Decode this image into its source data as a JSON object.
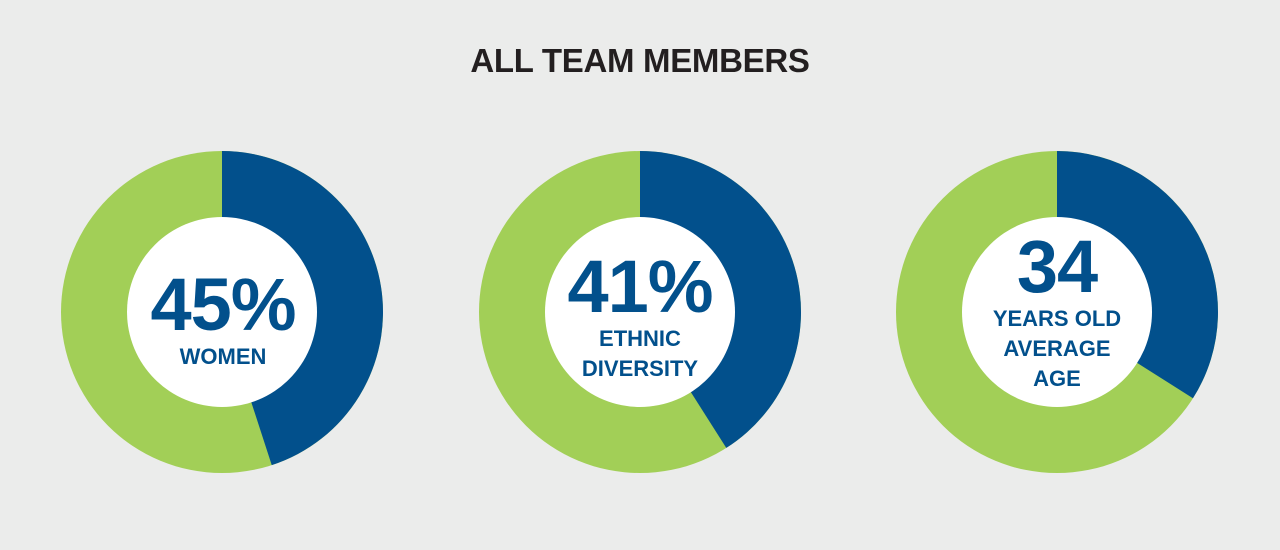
{
  "page": {
    "title": "ALL TEAM MEMBERS"
  },
  "colors": {
    "background": "#ebeceb",
    "highlight": "#02508c",
    "remainder": "#a2cf57",
    "center": "#ffffff"
  },
  "chart_data": [
    {
      "type": "pie",
      "values": [
        45,
        55
      ],
      "value_label": "45%",
      "caption": "WOMEN"
    },
    {
      "type": "pie",
      "values": [
        41,
        59
      ],
      "value_label": "41%",
      "caption": "ETHNIC\nDIVERSITY"
    },
    {
      "type": "pie",
      "values": [
        34,
        66
      ],
      "value_label": "34",
      "caption": "YEARS OLD\nAVERAGE\nAGE"
    }
  ]
}
